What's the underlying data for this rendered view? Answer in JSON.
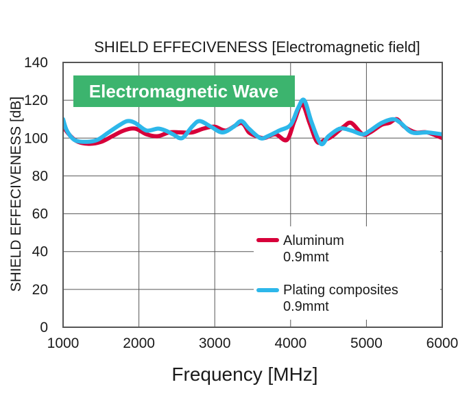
{
  "chart_data": {
    "type": "line",
    "title": "SHIELD EFFECIVENESS [Electromagnetic field]",
    "badge": "Electromagnetic Wave",
    "xlabel": "Frequency [MHz]",
    "ylabel": "SHIELD EFFECIVENESS [dB]",
    "xlim": [
      1000,
      6000
    ],
    "ylim": [
      0,
      140
    ],
    "xticks": [
      1000,
      2000,
      3000,
      4000,
      5000,
      6000
    ],
    "yticks": [
      0,
      20,
      40,
      60,
      80,
      100,
      120,
      140
    ],
    "grid": true,
    "legend_position": "bottom-right",
    "colors": {
      "badge": "#3cb46e",
      "aluminum": "#d7003a",
      "plating": "#2db7ea"
    },
    "series": [
      {
        "name": "Aluminum",
        "sub": "0.9mmt",
        "color": "#d7003a",
        "x": [
          1000,
          1100,
          1200,
          1350,
          1500,
          1650,
          1800,
          1950,
          2100,
          2250,
          2400,
          2550,
          2700,
          2850,
          3000,
          3150,
          3350,
          3450,
          3550,
          3650,
          3800,
          3950,
          4050,
          4150,
          4250,
          4350,
          4450,
          4550,
          4700,
          4800,
          4950,
          5050,
          5200,
          5300,
          5400,
          5500,
          5650,
          5800,
          6000
        ],
        "y": [
          106,
          101,
          98,
          97,
          98,
          101,
          104,
          105,
          102,
          101,
          103,
          103,
          103,
          105,
          106,
          104,
          108,
          103,
          101,
          100,
          102,
          99,
          109,
          118,
          108,
          98,
          99,
          101,
          106,
          108,
          102,
          103,
          107,
          108,
          110,
          106,
          103,
          103,
          100
        ]
      },
      {
        "name": "Plating composites",
        "sub": "0.9mmt",
        "color": "#2db7ea",
        "x": [
          1000,
          1050,
          1150,
          1300,
          1450,
          1600,
          1750,
          1850,
          1950,
          2100,
          2250,
          2350,
          2450,
          2570,
          2700,
          2800,
          2950,
          3100,
          3250,
          3350,
          3450,
          3600,
          3700,
          3850,
          4000,
          4100,
          4180,
          4280,
          4400,
          4500,
          4650,
          4800,
          4950,
          5050,
          5200,
          5350,
          5450,
          5600,
          5800,
          6000
        ],
        "y": [
          110,
          104,
          99,
          98,
          99,
          103,
          107,
          109,
          108,
          104,
          105,
          104,
          102,
          100,
          106,
          109,
          106,
          103,
          106,
          109,
          105,
          100,
          101,
          104,
          107,
          116,
          120,
          108,
          97,
          101,
          105,
          104,
          102,
          104,
          108,
          110,
          108,
          103,
          103,
          102
        ]
      }
    ]
  }
}
